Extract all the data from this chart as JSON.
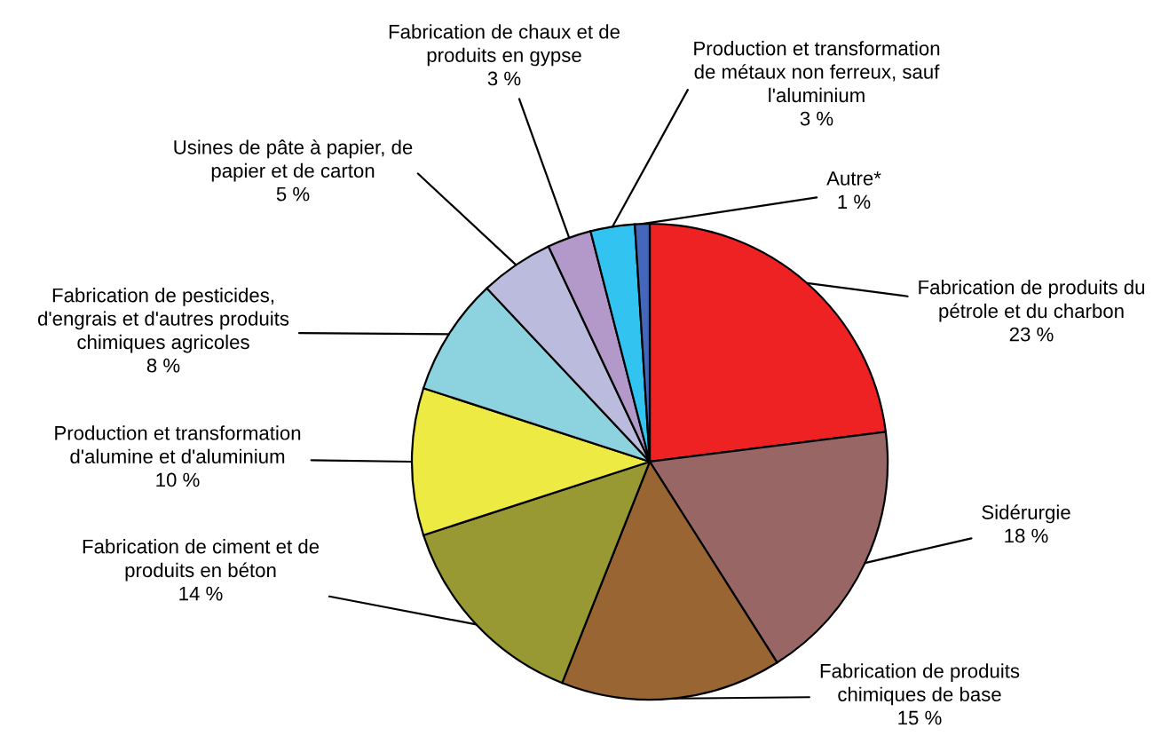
{
  "chart_data": {
    "type": "pie",
    "categories": [
      "Fabrication de produits du\npétrole et du charbon",
      "Sidérurgie",
      "Fabrication de produits\nchimiques de base",
      "Fabrication de ciment et de\nproduits en béton",
      "Production et transformation\nd'alumine et d'aluminium",
      "Fabrication de pesticides,\nd'engrais et d'autres produits\nchimiques agricoles",
      "Usines de pâte à papier, de\npapier et de carton",
      "Fabrication de chaux et de\nproduits en gypse",
      "Production et transformation\nde métaux non ferreux, sauf\nl'aluminium",
      "Autre*"
    ],
    "values": [
      23,
      18,
      15,
      14,
      10,
      8,
      5,
      3,
      3,
      1
    ],
    "value_labels": [
      "23 %",
      "18 %",
      "15 %",
      "14 %",
      "10 %",
      "8 %",
      "5 %",
      "3 %",
      "3 %",
      "1 %"
    ],
    "colors": [
      "#ee2222",
      "#996666",
      "#996633",
      "#999933",
      "#eeea44",
      "#8dd3df",
      "#bbbbdd",
      "#b399c9",
      "#33c3f0",
      "#4466bb"
    ]
  }
}
